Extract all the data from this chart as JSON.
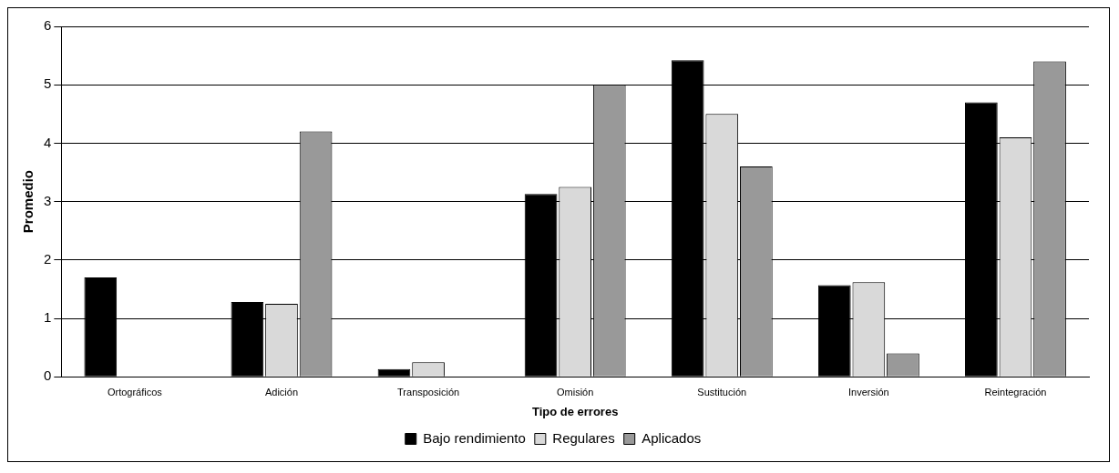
{
  "chart_data": {
    "type": "bar",
    "xlabel": "Tipo de errores",
    "ylabel": "Promedio",
    "categories": [
      "Ortográficos",
      "Adición",
      "Transposición",
      "Omisión",
      "Sustitución",
      "Inversión",
      "Reintegración"
    ],
    "series": [
      {
        "name": "Bajo rendimiento",
        "color": "#000000",
        "values": [
          1.7,
          1.28,
          0.13,
          3.13,
          5.42,
          1.57,
          4.7
        ]
      },
      {
        "name": "Regulares",
        "color": "#d9d9d9",
        "values": [
          0,
          1.25,
          0.25,
          3.25,
          4.5,
          1.62,
          4.1
        ]
      },
      {
        "name": "Aplicados",
        "color": "#999999",
        "values": [
          0,
          4.2,
          0,
          5.0,
          3.6,
          0.4,
          5.4
        ]
      }
    ],
    "ylim": [
      0,
      6
    ],
    "yticks": [
      0,
      1,
      2,
      3,
      4,
      5,
      6
    ],
    "grid": "y",
    "legend": "bottom"
  }
}
